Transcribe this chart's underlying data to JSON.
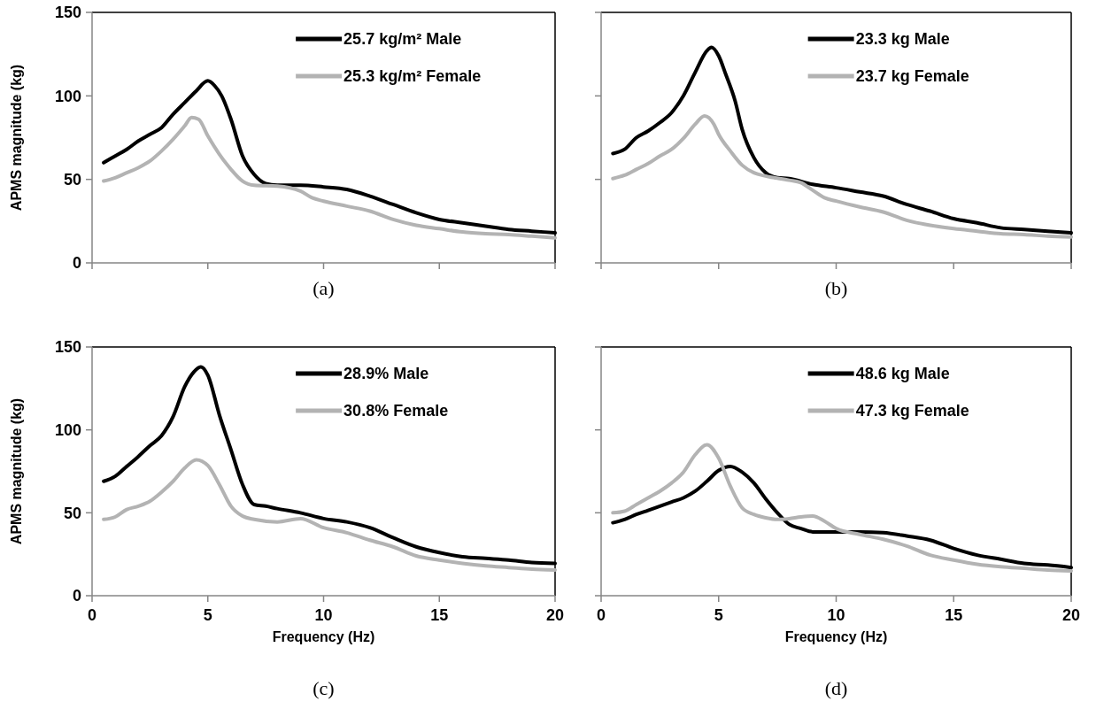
{
  "chart_data": [
    {
      "type": "line",
      "ylabel": "APMS magnitude (kg)",
      "annotations": [
        "(a)"
      ],
      "xlim": [
        0,
        20
      ],
      "xticks": [
        0,
        5,
        10,
        15,
        20
      ],
      "ylim": [
        0,
        150
      ],
      "yticks": [
        0,
        50,
        100,
        150
      ],
      "tick_labels": "y",
      "legend": "top right",
      "grid": false,
      "series": [
        {
          "name": "25.7 kg/m² Male",
          "color": "#000000",
          "x": [
            0.5,
            1,
            1.5,
            2,
            2.5,
            3,
            3.5,
            4,
            4.5,
            5,
            5.3,
            5.6,
            6,
            6.5,
            7,
            7.5,
            8,
            9,
            10,
            11,
            12,
            13,
            14,
            15,
            16,
            17,
            18,
            19,
            20
          ],
          "values": [
            60,
            64,
            68,
            73,
            77,
            81,
            89,
            96,
            103,
            109,
            106,
            100,
            86,
            64,
            53,
            47.5,
            46.5,
            46.5,
            45.5,
            44,
            40,
            35,
            30,
            26,
            24,
            22,
            20,
            19,
            18
          ]
        },
        {
          "name": "25.3 kg/m² Female",
          "color": "#b3b3b3",
          "x": [
            0.5,
            1,
            1.5,
            2,
            2.5,
            3,
            3.5,
            4,
            4.3,
            4.6,
            5,
            5.5,
            6,
            6.5,
            7,
            8,
            9,
            9.5,
            10,
            11,
            12,
            13,
            14,
            15,
            16,
            17,
            18,
            19,
            20
          ],
          "values": [
            49,
            51,
            54,
            57,
            61,
            67,
            74,
            82,
            87,
            86,
            76,
            65,
            56,
            49,
            46.5,
            46,
            43,
            39,
            37,
            34,
            31,
            26,
            22.5,
            20.5,
            18.5,
            17.5,
            17,
            16,
            15
          ]
        }
      ]
    },
    {
      "type": "line",
      "annotations": [
        "(b)"
      ],
      "xlim": [
        0,
        20
      ],
      "xticks": [
        0,
        5,
        10,
        15,
        20
      ],
      "ylim": [
        0,
        150
      ],
      "yticks": [
        0,
        50,
        100,
        150
      ],
      "tick_labels": false,
      "legend": "top right",
      "grid": false,
      "series": [
        {
          "name": "23.3 kg Male",
          "color": "#000000",
          "x": [
            0.5,
            1,
            1.5,
            2,
            2.5,
            3,
            3.5,
            4,
            4.5,
            4.7,
            5,
            5.3,
            5.7,
            6,
            6.5,
            7,
            7.5,
            8,
            9,
            10,
            11,
            12,
            13,
            14,
            15,
            16,
            17,
            18,
            19,
            20
          ],
          "values": [
            65.5,
            68,
            75,
            79,
            84,
            90,
            100,
            114,
            127,
            129,
            124,
            113,
            97,
            80,
            63,
            54,
            51,
            50.5,
            47,
            45,
            42.5,
            40,
            35,
            31,
            26.5,
            24,
            21,
            20,
            19,
            18
          ]
        },
        {
          "name": "23.7 kg Female",
          "color": "#b3b3b3",
          "x": [
            0.5,
            1,
            1.5,
            2,
            2.5,
            3,
            3.5,
            4,
            4.4,
            4.8,
            5,
            5.5,
            6,
            6.5,
            7,
            8,
            8.5,
            9,
            9.5,
            10,
            11,
            12,
            13,
            14,
            15,
            16,
            17,
            18,
            19,
            20
          ],
          "values": [
            50.5,
            52.5,
            56,
            59.5,
            64,
            68,
            74.5,
            83,
            88,
            83,
            77,
            67,
            58.5,
            54,
            52,
            49.5,
            48,
            43.5,
            39,
            37,
            33.5,
            30.5,
            25.5,
            22.5,
            20.5,
            19,
            17.5,
            17,
            16,
            15.5
          ]
        }
      ]
    },
    {
      "type": "line",
      "xlabel": "Frequency (Hz)",
      "ylabel": "APMS magnitude (kg)",
      "annotations": [
        "(c)"
      ],
      "xlim": [
        0,
        20
      ],
      "xticks": [
        0,
        5,
        10,
        15,
        20
      ],
      "ylim": [
        0,
        150
      ],
      "yticks": [
        0,
        50,
        100,
        150
      ],
      "legend": "top right",
      "grid": false,
      "series": [
        {
          "name": "28.9% Male",
          "color": "#000000",
          "x": [
            0.5,
            1,
            1.5,
            2,
            2.5,
            3,
            3.5,
            4,
            4.4,
            4.7,
            5,
            5.5,
            6,
            6.5,
            7,
            7.5,
            8,
            9,
            10,
            11,
            12,
            13,
            14,
            15,
            16,
            17,
            18,
            19,
            20
          ],
          "values": [
            69,
            72,
            78,
            84,
            90.5,
            96.5,
            108,
            126,
            135,
            138,
            133,
            109,
            88,
            67,
            55,
            54,
            52.5,
            50,
            46.5,
            44.5,
            41,
            35,
            29.5,
            26,
            23.5,
            22.5,
            21.5,
            20,
            19.5
          ]
        },
        {
          "name": "30.8% Female",
          "color": "#b3b3b3",
          "x": [
            0.5,
            1,
            1.5,
            2,
            2.5,
            3,
            3.5,
            4,
            4.5,
            5,
            5.5,
            6,
            6.5,
            7,
            8,
            9,
            10,
            11,
            12,
            13,
            14,
            15,
            16,
            17,
            18,
            19,
            20
          ],
          "values": [
            46,
            47.5,
            52,
            54,
            57,
            62.5,
            69,
            77,
            82,
            78.5,
            67,
            54,
            48,
            46,
            44.5,
            46.5,
            41,
            38,
            33.5,
            29.5,
            24,
            21.5,
            19.5,
            18,
            17,
            16,
            15.5
          ]
        }
      ]
    },
    {
      "type": "line",
      "xlabel": "Frequency (Hz)",
      "annotations": [
        "(d)"
      ],
      "xlim": [
        0,
        20
      ],
      "xticks": [
        0,
        5,
        10,
        15,
        20
      ],
      "ylim": [
        0,
        150
      ],
      "yticks": [
        0,
        50,
        100,
        150
      ],
      "tick_labels": "x",
      "legend": "top right",
      "grid": false,
      "series": [
        {
          "name": "48.6 kg Male",
          "color": "#000000",
          "x": [
            0.5,
            1,
            1.5,
            2,
            2.5,
            3,
            3.5,
            4,
            4.5,
            5,
            5.5,
            6,
            6.5,
            7,
            7.5,
            8,
            8.5,
            9,
            10,
            11,
            12,
            13,
            14,
            15,
            16,
            17,
            18,
            19,
            20
          ],
          "values": [
            44,
            46,
            49,
            51.5,
            54,
            56.5,
            59,
            63,
            69,
            75.5,
            78,
            74.5,
            68,
            58.5,
            50,
            43,
            40.5,
            38.5,
            38.5,
            38.5,
            38,
            36,
            33.5,
            28.5,
            24.5,
            22,
            19.5,
            18.5,
            17
          ]
        },
        {
          "name": "47.3 kg Female",
          "color": "#b3b3b3",
          "x": [
            0.5,
            1,
            1.5,
            2,
            2.5,
            3,
            3.5,
            4,
            4.5,
            5,
            5.5,
            6,
            6.5,
            7,
            7.5,
            8,
            8.5,
            9,
            9.5,
            10,
            11,
            12,
            13,
            14,
            15,
            16,
            17,
            18,
            19,
            20
          ],
          "values": [
            50,
            51,
            55,
            59,
            63,
            68,
            74.5,
            85,
            91,
            83,
            66,
            53,
            49,
            47,
            46,
            46.5,
            47.5,
            48,
            45,
            40.5,
            37,
            34,
            30,
            24.5,
            21.5,
            19,
            17.5,
            16.5,
            15.5,
            15
          ]
        }
      ]
    }
  ]
}
